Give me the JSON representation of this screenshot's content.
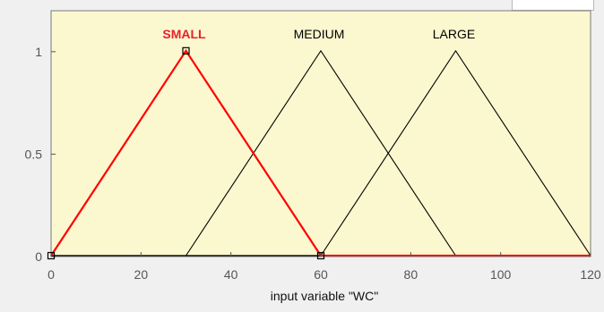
{
  "chart_data": {
    "type": "line",
    "title": "",
    "xlabel": "input variable \"WC\"",
    "ylabel": "",
    "xlim": [
      0,
      120
    ],
    "ylim": [
      0,
      1.2
    ],
    "xticks": [
      "0",
      "20",
      "40",
      "60",
      "80",
      "100",
      "120"
    ],
    "yticks": [
      "0",
      "0.5",
      "1"
    ],
    "grid": false,
    "series": [
      {
        "name": "SMALL",
        "points": [
          [
            0,
            0
          ],
          [
            30,
            1
          ],
          [
            60,
            0
          ],
          [
            120,
            0
          ]
        ],
        "color": "#ff0000",
        "label_color": "#e8212c",
        "selected": true
      },
      {
        "name": "MEDIUM",
        "points": [
          [
            30,
            0
          ],
          [
            60,
            1
          ],
          [
            90,
            0
          ]
        ],
        "color": "#000000",
        "label_color": "#000000",
        "selected": false
      },
      {
        "name": "LARGE",
        "points": [
          [
            60,
            0
          ],
          [
            90,
            1
          ],
          [
            120,
            0
          ]
        ],
        "color": "#000000",
        "label_color": "#000000",
        "selected": false
      }
    ],
    "baseline": {
      "points": [
        [
          0,
          0
        ],
        [
          120,
          0
        ]
      ],
      "color": "#000000"
    },
    "handles": [
      [
        0,
        0
      ],
      [
        30,
        1
      ],
      [
        60,
        0
      ]
    ]
  },
  "colors": {
    "plot_background": "#fbf7cf",
    "window_background": "#f0f0f0",
    "tick_text": "#555555"
  }
}
